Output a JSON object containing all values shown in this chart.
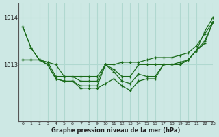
{
  "title": "Graphe pression niveau de la mer (hPa)",
  "bg_color": "#cde8e4",
  "line_color": "#1a6b1a",
  "grid_color": "#b0d8d0",
  "xlim": [
    -0.5,
    23
  ],
  "ylim": [
    1011.8,
    1014.3
  ],
  "yticks": [
    1013,
    1014
  ],
  "xticks": [
    0,
    1,
    2,
    3,
    4,
    5,
    6,
    7,
    8,
    9,
    10,
    11,
    12,
    13,
    14,
    15,
    16,
    17,
    18,
    19,
    20,
    21,
    22,
    23
  ],
  "series": [
    [
      1013.8,
      1013.35,
      1013.1,
      1013.05,
      1013.0,
      1012.75,
      1012.75,
      1012.75,
      1012.75,
      1012.75,
      1013.0,
      1013.0,
      1013.05,
      1013.05,
      1013.05,
      1013.1,
      1013.15,
      1013.15,
      1013.15,
      1013.2,
      1013.25,
      1013.4,
      1013.65,
      1013.9
    ],
    [
      1013.1,
      1013.1,
      1013.1,
      1013.05,
      1012.75,
      1012.75,
      1012.75,
      1012.65,
      1012.65,
      1012.65,
      1013.0,
      1012.9,
      1012.75,
      1012.75,
      1013.0,
      1013.0,
      1013.0,
      1013.0,
      1013.0,
      1013.05,
      1013.1,
      1013.3,
      1013.5,
      1013.9
    ],
    [
      1013.1,
      1013.1,
      1013.1,
      1013.0,
      1012.7,
      1012.65,
      1012.65,
      1012.55,
      1012.55,
      1012.55,
      1013.0,
      1012.85,
      1012.65,
      1012.6,
      1012.8,
      1012.75,
      1012.75,
      1013.0,
      1013.0,
      1013.0,
      1013.1,
      1013.3,
      1013.45,
      1013.9
    ],
    [
      1013.8,
      1013.35,
      1013.1,
      1013.0,
      1012.7,
      1012.65,
      1012.65,
      1012.5,
      1012.5,
      1012.5,
      1012.6,
      1012.7,
      1012.55,
      1012.45,
      1012.65,
      1012.7,
      1012.7,
      1013.0,
      1013.0,
      1013.0,
      1013.1,
      1013.3,
      1013.7,
      1014.0
    ]
  ]
}
